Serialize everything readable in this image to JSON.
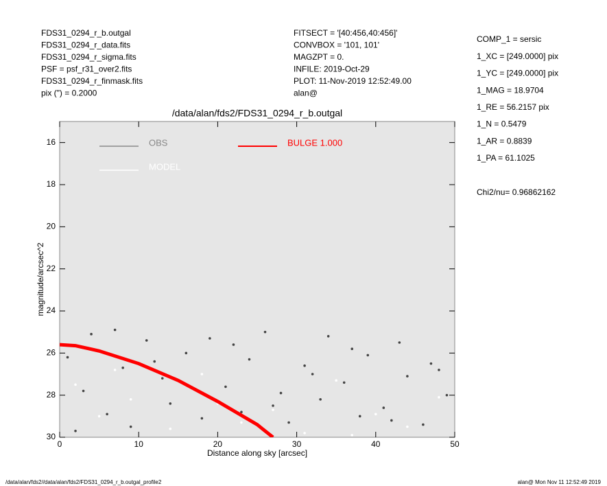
{
  "header": {
    "left": [
      "FDS31_0294_r_b.outgal",
      "FDS31_0294_r_data.fits",
      "FDS31_0294_r_sigma.fits",
      "PSF    = psf_r31_over2.fits",
      "FDS31_0294_r_finmask.fits",
      "pix (\") =  0.2000"
    ],
    "middle": [
      "FITSECT = '[40:456,40:456]'",
      "CONVBOX = '101, 101'",
      "MAGZPT  =              0.",
      "INFILE: 2019-Oct-29",
      "PLOT: 11-Nov-2019 12:52:49.00",
      "alan@"
    ],
    "params": [
      "COMP_1  = sersic",
      "1_XC    = [249.0000] pix",
      "1_YC    = [249.0000] pix",
      "1_MAG   = 18.9704",
      "1_RE    = 56.2157 pix",
      "1_N     = 0.5479",
      "1_AR    = 0.8839",
      "1_PA    = 61.1025"
    ],
    "chi2": "Chi2/nu=      0.96862162"
  },
  "footer": {
    "left": "/data/alan/fds2//data/alan/fds2/FDS31_0294_r_b.outgal_profile2",
    "right": "alan@  Mon Nov 11 12:52:49 2019"
  },
  "chart_data": {
    "type": "scatter",
    "title": "/data/alan/fds2/FDS31_0294_r_b.outgal",
    "x_label": "Distance along sky [arcsec]",
    "y_label": "magnitude/arcsec^2",
    "xlim": [
      0,
      50
    ],
    "xticks": [
      0,
      10,
      20,
      30,
      40,
      50
    ],
    "ylim": [
      15,
      30
    ],
    "yticks": [
      16,
      18,
      20,
      22,
      24,
      26,
      28,
      30
    ],
    "y_inverted": true,
    "background": "#e6e6e6",
    "series": [
      {
        "name": "OBS",
        "color": "#888888",
        "kind": "points",
        "x": [
          1,
          3,
          4,
          6,
          8,
          9,
          11,
          13,
          14,
          16,
          18,
          19,
          21,
          23,
          24,
          26,
          28,
          29,
          31,
          33,
          34,
          36,
          38,
          39,
          41,
          43,
          44,
          46,
          48,
          49,
          2,
          7,
          12,
          17,
          22,
          27,
          32,
          37,
          42,
          47
        ],
        "values": [
          26.2,
          27.8,
          25.1,
          28.9,
          26.7,
          29.5,
          25.4,
          27.2,
          28.4,
          26.0,
          29.1,
          25.3,
          27.6,
          28.8,
          26.3,
          25.0,
          27.9,
          29.3,
          26.6,
          28.2,
          25.2,
          27.4,
          29.0,
          26.1,
          28.6,
          25.5,
          27.1,
          29.4,
          26.8,
          28.0,
          29.7,
          24.9,
          26.4,
          27.7,
          25.6,
          28.5,
          27.0,
          25.8,
          29.2,
          26.5
        ]
      },
      {
        "name": "MODEL",
        "color": "#ffffff",
        "kind": "points",
        "x": [
          2,
          5,
          9,
          14,
          18,
          23,
          27,
          31,
          35,
          40,
          44,
          48,
          7,
          20,
          37
        ],
        "values": [
          27.5,
          29.0,
          28.2,
          29.6,
          27.0,
          29.3,
          28.7,
          29.8,
          27.3,
          28.9,
          29.5,
          28.1,
          26.8,
          28.4,
          29.9
        ]
      },
      {
        "name": "BULGE  1.000",
        "color": "#ff0000",
        "kind": "line",
        "x": [
          0,
          2,
          5,
          10,
          15,
          20,
          25,
          27
        ],
        "values": [
          25.6,
          25.65,
          25.9,
          26.5,
          27.3,
          28.3,
          29.4,
          30.0
        ]
      }
    ]
  }
}
